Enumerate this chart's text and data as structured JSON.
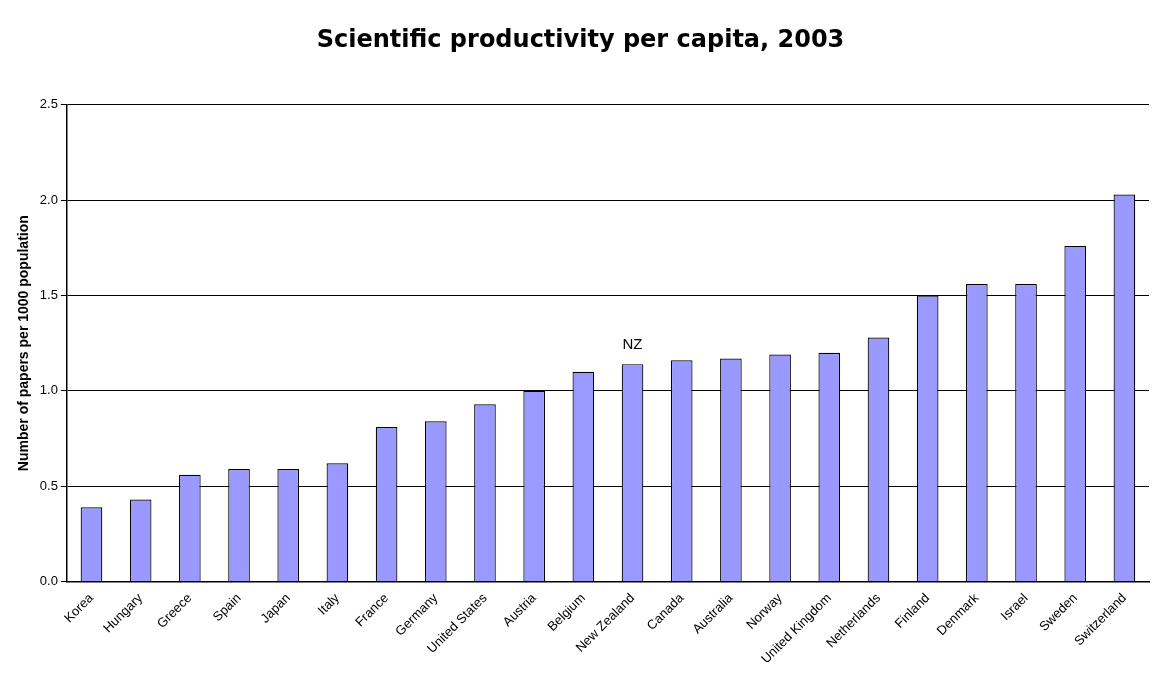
{
  "chart_data": {
    "type": "bar",
    "title": "Scientific productivity per capita, 2003",
    "ylabel": "Number of papers per 1000 population",
    "categories": [
      "Korea",
      "Hungary",
      "Greece",
      "Spain",
      "Japan",
      "Italy",
      "France",
      "Germany",
      "United States",
      "Austria",
      "Belgium",
      "New Zealand",
      "Canada",
      "Australia",
      "Norway",
      "United Kingdom",
      "Netherlands",
      "Finland",
      "Denmark",
      "Israel",
      "Sweden",
      "Switzerland"
    ],
    "values": [
      0.39,
      0.43,
      0.56,
      0.59,
      0.59,
      0.62,
      0.81,
      0.84,
      0.93,
      1.0,
      1.1,
      1.14,
      1.16,
      1.17,
      1.19,
      1.2,
      1.28,
      1.5,
      1.56,
      1.56,
      1.76,
      2.03
    ],
    "color": "#9999ff",
    "ylim": [
      0,
      2.5
    ],
    "yticks": [
      {
        "value": 0,
        "label": "0.0"
      },
      {
        "value": 0.5,
        "label": "0.5"
      },
      {
        "value": 1,
        "label": "1.0"
      },
      {
        "value": 1.5,
        "label": "1.5"
      },
      {
        "value": 2,
        "label": "2.0"
      },
      {
        "value": 2.5,
        "label": "2.5"
      }
    ],
    "grid": "y",
    "legend": false,
    "annotations": [
      {
        "text": "NZ",
        "x": "New Zealand",
        "y": 1.14
      }
    ]
  }
}
